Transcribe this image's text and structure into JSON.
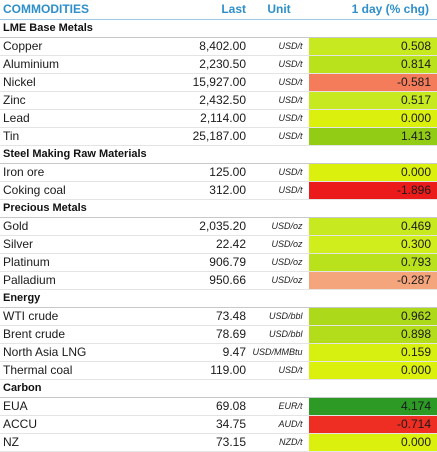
{
  "header": {
    "name": "COMMODITIES",
    "last": "Last",
    "unit": "Unit",
    "change": "1 day (% chg)"
  },
  "sections": [
    {
      "title": "LME Base Metals",
      "rows": [
        {
          "name": "Copper",
          "last": "8,402.00",
          "unit": "USD/t",
          "change": "0.508",
          "color": "#c6ea1f"
        },
        {
          "name": "Aluminium",
          "last": "2,230.50",
          "unit": "USD/t",
          "change": "0.814",
          "color": "#b9e11c"
        },
        {
          "name": "Nickel",
          "last": "15,927.00",
          "unit": "USD/t",
          "change": "-0.581",
          "color": "#f57c5b"
        },
        {
          "name": "Zinc",
          "last": "2,432.50",
          "unit": "USD/t",
          "change": "0.517",
          "color": "#c6ea1f"
        },
        {
          "name": "Lead",
          "last": "2,114.00",
          "unit": "USD/t",
          "change": "0.000",
          "color": "#dcf00d"
        },
        {
          "name": "Tin",
          "last": "25,187.00",
          "unit": "USD/t",
          "change": "1.413",
          "color": "#92cc15"
        }
      ]
    },
    {
      "title": "Steel Making Raw Materials",
      "rows": [
        {
          "name": "Iron ore",
          "last": "125.00",
          "unit": "USD/t",
          "change": "0.000",
          "color": "#dcf00d"
        },
        {
          "name": "Coking coal",
          "last": "312.00",
          "unit": "USD/t",
          "change": "-1.896",
          "color": "#ec1b1b"
        }
      ]
    },
    {
      "title": "Precious Metals",
      "rows": [
        {
          "name": "Gold",
          "last": "2,035.20",
          "unit": "USD/oz",
          "change": "0.469",
          "color": "#c6ea1f"
        },
        {
          "name": "Silver",
          "last": "22.42",
          "unit": "USD/oz",
          "change": "0.300",
          "color": "#d0ee1c"
        },
        {
          "name": "Platinum",
          "last": "906.79",
          "unit": "USD/oz",
          "change": "0.793",
          "color": "#b9e11c"
        },
        {
          "name": "Palladium",
          "last": "950.66",
          "unit": "USD/oz",
          "change": "-0.287",
          "color": "#f5a57c"
        }
      ]
    },
    {
      "title": "Energy",
      "rows": [
        {
          "name": "WTI crude",
          "last": "73.48",
          "unit": "USD/bbl",
          "change": "0.962",
          "color": "#acd91a"
        },
        {
          "name": "Brent crude",
          "last": "78.69",
          "unit": "USD/bbl",
          "change": "0.898",
          "color": "#b3dd1b"
        },
        {
          "name": "North Asia LNG",
          "last": "9.47",
          "unit": "USD/MMBtu",
          "change": "0.159",
          "color": "#d8f00f"
        },
        {
          "name": "Thermal coal",
          "last": "119.00",
          "unit": "USD/t",
          "change": "0.000",
          "color": "#dcf00d"
        }
      ]
    },
    {
      "title": "Carbon",
      "rows": [
        {
          "name": "EUA",
          "last": "69.08",
          "unit": "EUR/t",
          "change": "4.174",
          "color": "#2c9a25"
        },
        {
          "name": "ACCU",
          "last": "34.75",
          "unit": "AUD/t",
          "change": "-0.714",
          "color": "#ee2e23"
        },
        {
          "name": "NZ",
          "last": "73.15",
          "unit": "NZD/t",
          "change": "0.000",
          "color": "#dcf00d"
        }
      ]
    }
  ]
}
